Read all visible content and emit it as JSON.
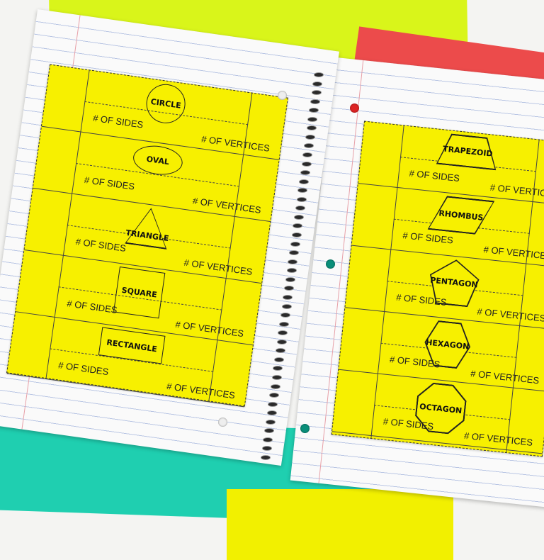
{
  "left_sheet": {
    "shapes": [
      {
        "name": "CIRCLE",
        "form": "circle"
      },
      {
        "name": "OVAL",
        "form": "oval"
      },
      {
        "name": "TRIANGLE",
        "form": "triangle"
      },
      {
        "name": "SQUARE",
        "form": "square"
      },
      {
        "name": "RECTANGLE",
        "form": "rectangle"
      }
    ]
  },
  "right_sheet": {
    "shapes": [
      {
        "name": "TRAPEZOID",
        "form": "trapezoid"
      },
      {
        "name": "RHOMBUS",
        "form": "rhombus"
      },
      {
        "name": "PENTAGON",
        "form": "pentagon"
      },
      {
        "name": "HEXAGON",
        "form": "hexagon"
      },
      {
        "name": "OCTAGON",
        "form": "octagon"
      }
    ]
  },
  "labels": {
    "sides": "# OF SIDES",
    "vertices": "# OF VERTICES"
  },
  "colors": {
    "sheet": "#f7f000",
    "lime": "#d9f51a",
    "red": "#ec4b4b",
    "teal": "#1fcfb0"
  }
}
